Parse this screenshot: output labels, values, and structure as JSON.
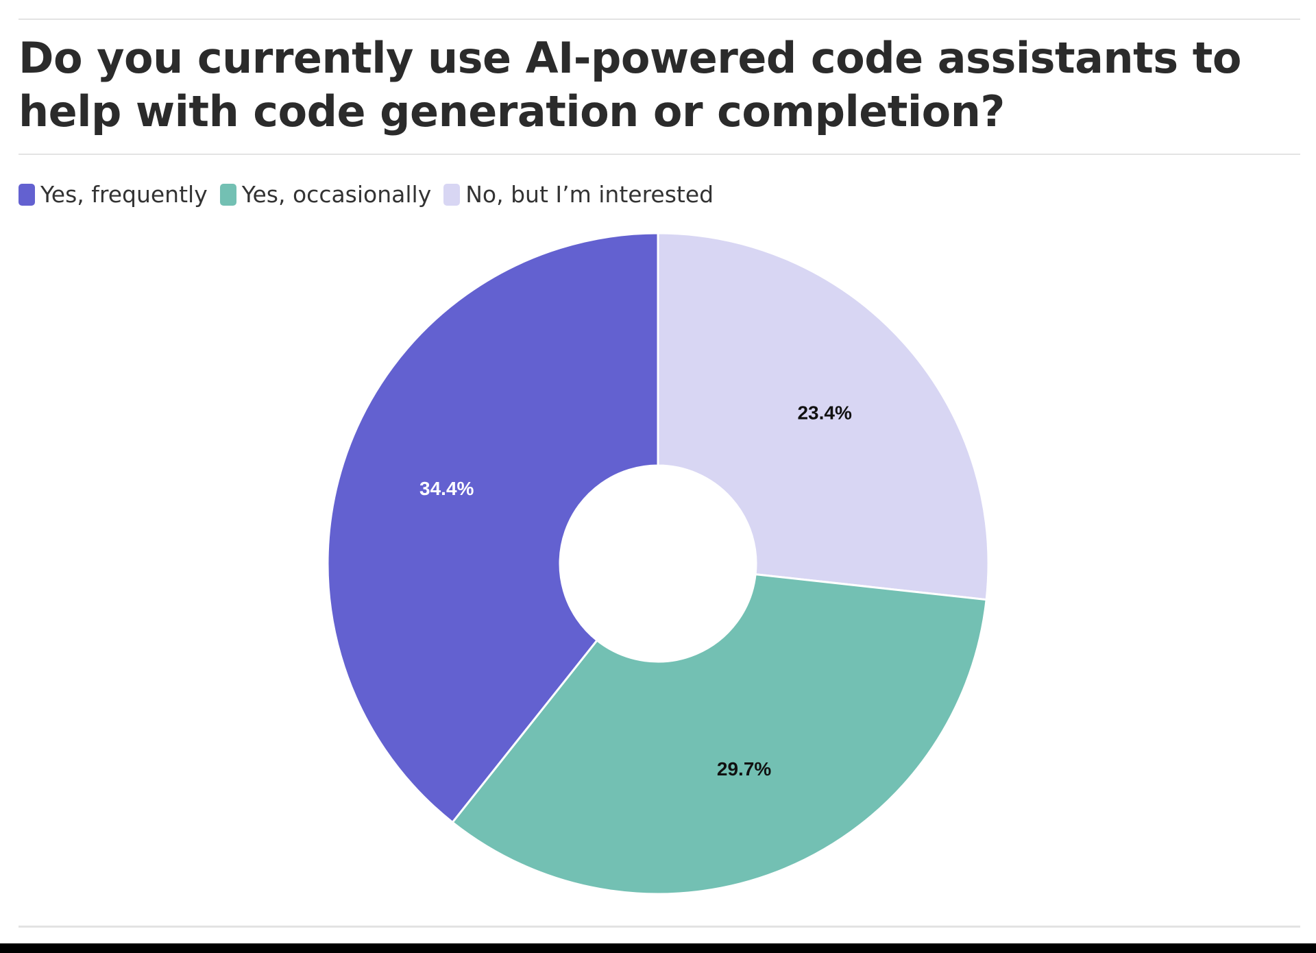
{
  "chart_data": {
    "type": "pie",
    "title": "Do you currently use AI-powered code assistants to help with code generation or completion?",
    "legend_position": "top-left",
    "donut": true,
    "categories": [
      "Yes, frequently",
      "Yes, occasionally",
      "No, but I’m interested"
    ],
    "values": [
      34.4,
      29.7,
      23.4
    ],
    "labels": [
      "34.4%",
      "29.7%",
      "23.4%"
    ],
    "colors": [
      "#6361d0",
      "#73c0b3",
      "#d8d6f3"
    ],
    "label_colors": [
      "#ffffff",
      "#111111",
      "#111111"
    ]
  }
}
